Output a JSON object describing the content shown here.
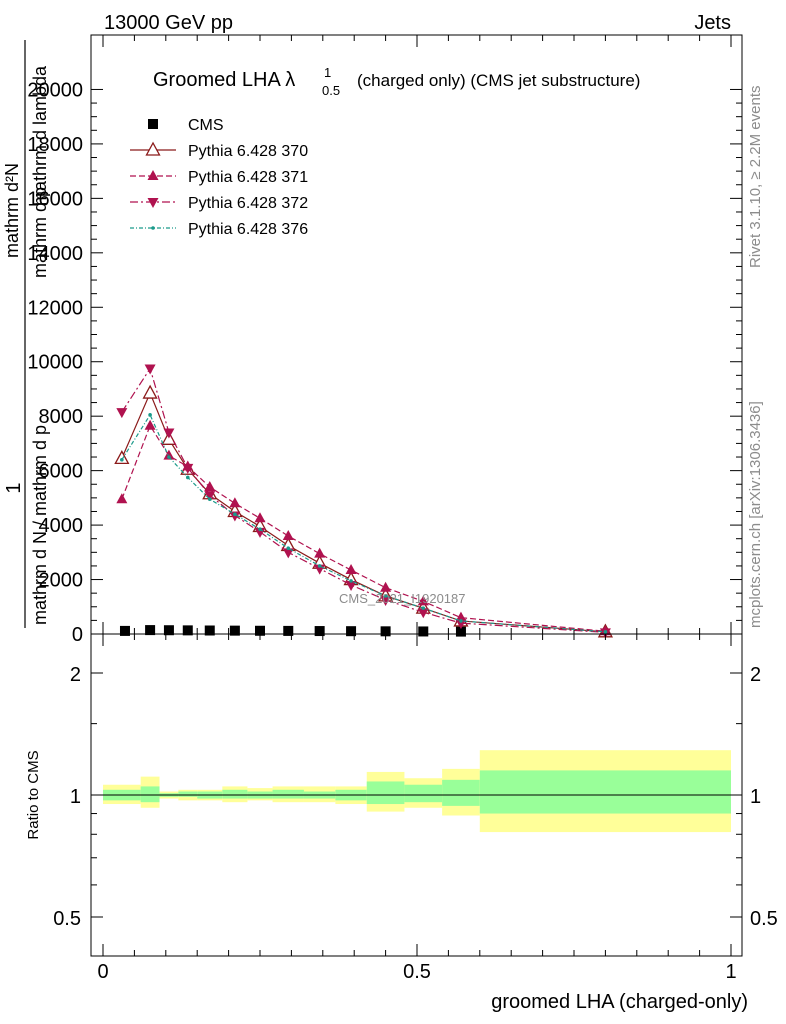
{
  "header": {
    "left": "13000 GeV pp",
    "right": "Jets"
  },
  "side_text": {
    "rivet": "Rivet 3.1.10, ≥ 2.2M events",
    "mcplots": "mcplots.cern.ch [arXiv:1306.3436]"
  },
  "watermark": "CMS_2021_I1920187",
  "colors": {
    "cms": "#000000",
    "p370": "#8b1a1a",
    "p371": "#b0124f",
    "p372": "#b0124f",
    "p376": "#1a9a8a",
    "band_inner": "#99ff99",
    "band_outer": "#ffff99"
  },
  "chart_data": [
    {
      "type": "line",
      "title": "Groomed LHA λ¹₀.₅ (charged only) (CMS jet substructure)",
      "title_main": "Groomed LHA λ",
      "title_sup": "1",
      "title_sub": "0.5",
      "title_rest": "(charged only) (CMS jet substructure)",
      "ylabel_parts": [
        "1",
        "mathrm d²N",
        "mathrm d p",
        "T",
        "mathrm d lambda",
        "mathrm d N / mathrm d p",
        "T"
      ],
      "ylabel": "1 / mathrm dN / mathrm d p_T  mathrm d²N / mathrm d p_T mathrm d lambda",
      "ylim": [
        0,
        22000
      ],
      "yticks": [
        0,
        2000,
        4000,
        6000,
        8000,
        10000,
        12000,
        14000,
        16000,
        18000,
        20000
      ],
      "ytick_labels": [
        "0",
        "2000",
        "4000",
        "6000",
        "8000",
        "10000",
        "12000",
        "14000",
        "16000",
        "18000",
        "20000"
      ],
      "xlim": [
        -0.02,
        1.0
      ],
      "legend_position": "top-left",
      "series": [
        {
          "name": "CMS",
          "marker": "square",
          "x": [
            0.035,
            0.075,
            0.105,
            0.135,
            0.17,
            0.21,
            0.25,
            0.295,
            0.345,
            0.395,
            0.45,
            0.51,
            0.57
          ],
          "y": [
            40,
            70,
            65,
            60,
            55,
            50,
            45,
            40,
            35,
            30,
            25,
            20,
            15
          ]
        },
        {
          "name": "Pythia 6.428 370",
          "marker": "triangle-open",
          "x": [
            0.03,
            0.075,
            0.105,
            0.135,
            0.17,
            0.21,
            0.25,
            0.295,
            0.345,
            0.395,
            0.45,
            0.51,
            0.57,
            0.8
          ],
          "y": [
            6450,
            8850,
            7150,
            6050,
            5150,
            4500,
            3950,
            3250,
            2600,
            2000,
            1400,
            950,
            480,
            80
          ]
        },
        {
          "name": "Pythia 6.428 371",
          "marker": "triangle-up",
          "x": [
            0.03,
            0.075,
            0.105,
            0.135,
            0.17,
            0.21,
            0.25,
            0.295,
            0.345,
            0.395,
            0.45,
            0.51,
            0.57,
            0.8
          ],
          "y": [
            4950,
            7650,
            6550,
            6150,
            5400,
            4800,
            4250,
            3600,
            2950,
            2350,
            1700,
            1200,
            600,
            100
          ]
        },
        {
          "name": "Pythia 6.428 372",
          "marker": "triangle-down",
          "x": [
            0.03,
            0.075,
            0.105,
            0.135,
            0.17,
            0.21,
            0.25,
            0.295,
            0.345,
            0.395,
            0.45,
            0.51,
            0.57,
            0.8
          ],
          "y": [
            8150,
            9750,
            7400,
            6100,
            5100,
            4350,
            3750,
            3000,
            2400,
            1800,
            1250,
            800,
            400,
            60
          ]
        },
        {
          "name": "Pythia 6.428 376",
          "marker": "dot",
          "x": [
            0.03,
            0.075,
            0.105,
            0.135,
            0.17,
            0.21,
            0.25,
            0.295,
            0.345,
            0.395,
            0.45,
            0.51,
            0.57,
            0.8
          ],
          "y": [
            6400,
            8050,
            6500,
            5750,
            4950,
            4400,
            3850,
            3150,
            2500,
            1950,
            1400,
            950,
            480,
            80
          ]
        }
      ]
    },
    {
      "type": "area",
      "ylabel": "Ratio to CMS",
      "ylim": [
        0.4,
        2.5
      ],
      "yticks_major": [
        0.5,
        1,
        2
      ],
      "ytick_labels": [
        "0.5",
        "1",
        "2"
      ],
      "xlabel": "groomed LHA (charged-only)",
      "xticks": [
        0,
        0.5,
        1
      ],
      "xtick_labels": [
        "0",
        "0.5",
        "1"
      ],
      "xlim": [
        -0.02,
        1.0
      ],
      "reference_line": 1,
      "bins": [
        {
          "x0": 0.0,
          "x1": 0.06,
          "inner": [
            0.97,
            1.03
          ],
          "outer": [
            0.95,
            1.06
          ]
        },
        {
          "x0": 0.06,
          "x1": 0.09,
          "inner": [
            0.96,
            1.05
          ],
          "outer": [
            0.93,
            1.11
          ]
        },
        {
          "x0": 0.09,
          "x1": 0.12,
          "inner": [
            0.99,
            1.01
          ],
          "outer": [
            0.98,
            1.02
          ]
        },
        {
          "x0": 0.12,
          "x1": 0.15,
          "inner": [
            0.99,
            1.02
          ],
          "outer": [
            0.97,
            1.03
          ]
        },
        {
          "x0": 0.15,
          "x1": 0.19,
          "inner": [
            0.98,
            1.02
          ],
          "outer": [
            0.97,
            1.03
          ]
        },
        {
          "x0": 0.19,
          "x1": 0.23,
          "inner": [
            0.98,
            1.03
          ],
          "outer": [
            0.96,
            1.05
          ]
        },
        {
          "x0": 0.23,
          "x1": 0.27,
          "inner": [
            0.98,
            1.02
          ],
          "outer": [
            0.97,
            1.04
          ]
        },
        {
          "x0": 0.27,
          "x1": 0.32,
          "inner": [
            0.98,
            1.03
          ],
          "outer": [
            0.96,
            1.05
          ]
        },
        {
          "x0": 0.32,
          "x1": 0.37,
          "inner": [
            0.98,
            1.02
          ],
          "outer": [
            0.96,
            1.05
          ]
        },
        {
          "x0": 0.37,
          "x1": 0.42,
          "inner": [
            0.97,
            1.03
          ],
          "outer": [
            0.95,
            1.05
          ]
        },
        {
          "x0": 0.42,
          "x1": 0.48,
          "inner": [
            0.95,
            1.08
          ],
          "outer": [
            0.91,
            1.14
          ]
        },
        {
          "x0": 0.48,
          "x1": 0.54,
          "inner": [
            0.96,
            1.06
          ],
          "outer": [
            0.93,
            1.1
          ]
        },
        {
          "x0": 0.54,
          "x1": 0.6,
          "inner": [
            0.94,
            1.09
          ],
          "outer": [
            0.89,
            1.16
          ]
        },
        {
          "x0": 0.6,
          "x1": 1.0,
          "inner": [
            0.9,
            1.15
          ],
          "outer": [
            0.81,
            1.29
          ]
        }
      ]
    }
  ]
}
